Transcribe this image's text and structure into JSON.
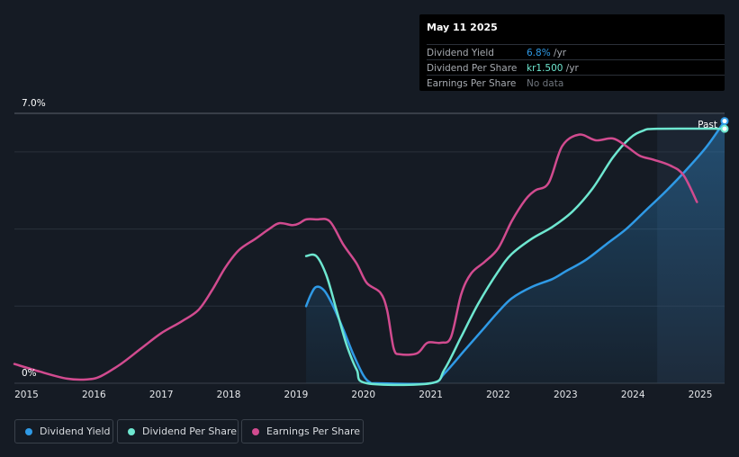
{
  "tooltip": {
    "date": "May 11 2025",
    "rows": [
      {
        "label": "Dividend Yield",
        "value": "6.8%",
        "unit": " /yr",
        "color": "#2f9ae6"
      },
      {
        "label": "Dividend Per Share",
        "value": "kr1.500",
        "unit": " /yr",
        "color": "#6ee7d0"
      },
      {
        "label": "Earnings Per Share",
        "value": "No data",
        "unit": "",
        "color": "#6f757d"
      }
    ]
  },
  "chart_data": {
    "type": "line",
    "y_axis_labels": [
      "7.0%",
      "0%"
    ],
    "ylim": [
      0,
      7.0
    ],
    "xlim": [
      2014.82,
      2025.36
    ],
    "x_ticks": [
      "2015",
      "2016",
      "2017",
      "2018",
      "2019",
      "2020",
      "2021",
      "2022",
      "2023",
      "2024",
      "2025"
    ],
    "past_label": "Past",
    "past_region_start": 2024.36,
    "grid": true,
    "series": [
      {
        "name": "Dividend Yield",
        "color": "#2f9ae6",
        "area": true,
        "points": [
          [
            2019.15,
            2.0
          ],
          [
            2019.22,
            2.3
          ],
          [
            2019.3,
            2.5
          ],
          [
            2019.42,
            2.4
          ],
          [
            2019.55,
            2.0
          ],
          [
            2019.7,
            1.4
          ],
          [
            2019.85,
            0.75
          ],
          [
            2020.0,
            0.2
          ],
          [
            2020.1,
            0.02
          ],
          [
            2020.2,
            0.0
          ],
          [
            2021.0,
            0.0
          ],
          [
            2021.2,
            0.25
          ],
          [
            2021.5,
            0.85
          ],
          [
            2021.8,
            1.45
          ],
          [
            2022.0,
            1.85
          ],
          [
            2022.2,
            2.2
          ],
          [
            2022.5,
            2.5
          ],
          [
            2022.8,
            2.7
          ],
          [
            2023.0,
            2.9
          ],
          [
            2023.3,
            3.2
          ],
          [
            2023.6,
            3.6
          ],
          [
            2023.9,
            4.0
          ],
          [
            2024.2,
            4.5
          ],
          [
            2024.5,
            5.0
          ],
          [
            2024.8,
            5.55
          ],
          [
            2025.1,
            6.15
          ],
          [
            2025.36,
            6.8
          ]
        ]
      },
      {
        "name": "Dividend Per Share",
        "color": "#6ee7d0",
        "area": false,
        "points": [
          [
            2019.15,
            3.3
          ],
          [
            2019.3,
            3.3
          ],
          [
            2019.45,
            2.8
          ],
          [
            2019.6,
            1.9
          ],
          [
            2019.75,
            1.0
          ],
          [
            2019.9,
            0.35
          ],
          [
            2020.05,
            0.0
          ],
          [
            2021.0,
            0.0
          ],
          [
            2021.2,
            0.35
          ],
          [
            2021.45,
            1.2
          ],
          [
            2021.7,
            2.05
          ],
          [
            2022.0,
            2.9
          ],
          [
            2022.2,
            3.35
          ],
          [
            2022.5,
            3.75
          ],
          [
            2022.8,
            4.05
          ],
          [
            2023.1,
            4.45
          ],
          [
            2023.4,
            5.05
          ],
          [
            2023.7,
            5.85
          ],
          [
            2023.95,
            6.35
          ],
          [
            2024.15,
            6.55
          ],
          [
            2024.36,
            6.6
          ],
          [
            2025.36,
            6.6
          ]
        ]
      },
      {
        "name": "Earnings Per Share",
        "color": "#d14b8f",
        "area": false,
        "points": [
          [
            2014.82,
            0.5
          ],
          [
            2015.2,
            0.3
          ],
          [
            2015.6,
            0.12
          ],
          [
            2015.9,
            0.1
          ],
          [
            2016.1,
            0.18
          ],
          [
            2016.4,
            0.5
          ],
          [
            2016.7,
            0.9
          ],
          [
            2017.0,
            1.3
          ],
          [
            2017.3,
            1.6
          ],
          [
            2017.55,
            1.9
          ],
          [
            2017.75,
            2.4
          ],
          [
            2017.95,
            3.0
          ],
          [
            2018.15,
            3.45
          ],
          [
            2018.4,
            3.75
          ],
          [
            2018.6,
            4.0
          ],
          [
            2018.75,
            4.15
          ],
          [
            2018.95,
            4.1
          ],
          [
            2019.05,
            4.15
          ],
          [
            2019.15,
            4.25
          ],
          [
            2019.3,
            4.25
          ],
          [
            2019.5,
            4.2
          ],
          [
            2019.7,
            3.6
          ],
          [
            2019.9,
            3.1
          ],
          [
            2020.05,
            2.6
          ],
          [
            2020.25,
            2.35
          ],
          [
            2020.35,
            1.9
          ],
          [
            2020.45,
            0.9
          ],
          [
            2020.55,
            0.75
          ],
          [
            2020.8,
            0.78
          ],
          [
            2020.95,
            1.05
          ],
          [
            2021.15,
            1.05
          ],
          [
            2021.3,
            1.2
          ],
          [
            2021.45,
            2.3
          ],
          [
            2021.6,
            2.85
          ],
          [
            2021.8,
            3.15
          ],
          [
            2022.0,
            3.5
          ],
          [
            2022.2,
            4.2
          ],
          [
            2022.4,
            4.75
          ],
          [
            2022.55,
            5.0
          ],
          [
            2022.75,
            5.2
          ],
          [
            2022.95,
            6.15
          ],
          [
            2023.2,
            6.45
          ],
          [
            2023.45,
            6.3
          ],
          [
            2023.7,
            6.35
          ],
          [
            2023.9,
            6.15
          ],
          [
            2024.1,
            5.9
          ],
          [
            2024.3,
            5.8
          ],
          [
            2024.55,
            5.65
          ],
          [
            2024.75,
            5.4
          ],
          [
            2024.95,
            4.7
          ]
        ]
      }
    ],
    "end_markers": [
      {
        "series": "Dividend Yield",
        "x": 2025.36,
        "y": 6.8
      },
      {
        "series": "Dividend Per Share",
        "x": 2025.36,
        "y": 6.6
      }
    ]
  },
  "legend": [
    {
      "label": "Dividend Yield",
      "color": "#2f9ae6"
    },
    {
      "label": "Dividend Per Share",
      "color": "#6ee7d0"
    },
    {
      "label": "Earnings Per Share",
      "color": "#d14b8f"
    }
  ]
}
